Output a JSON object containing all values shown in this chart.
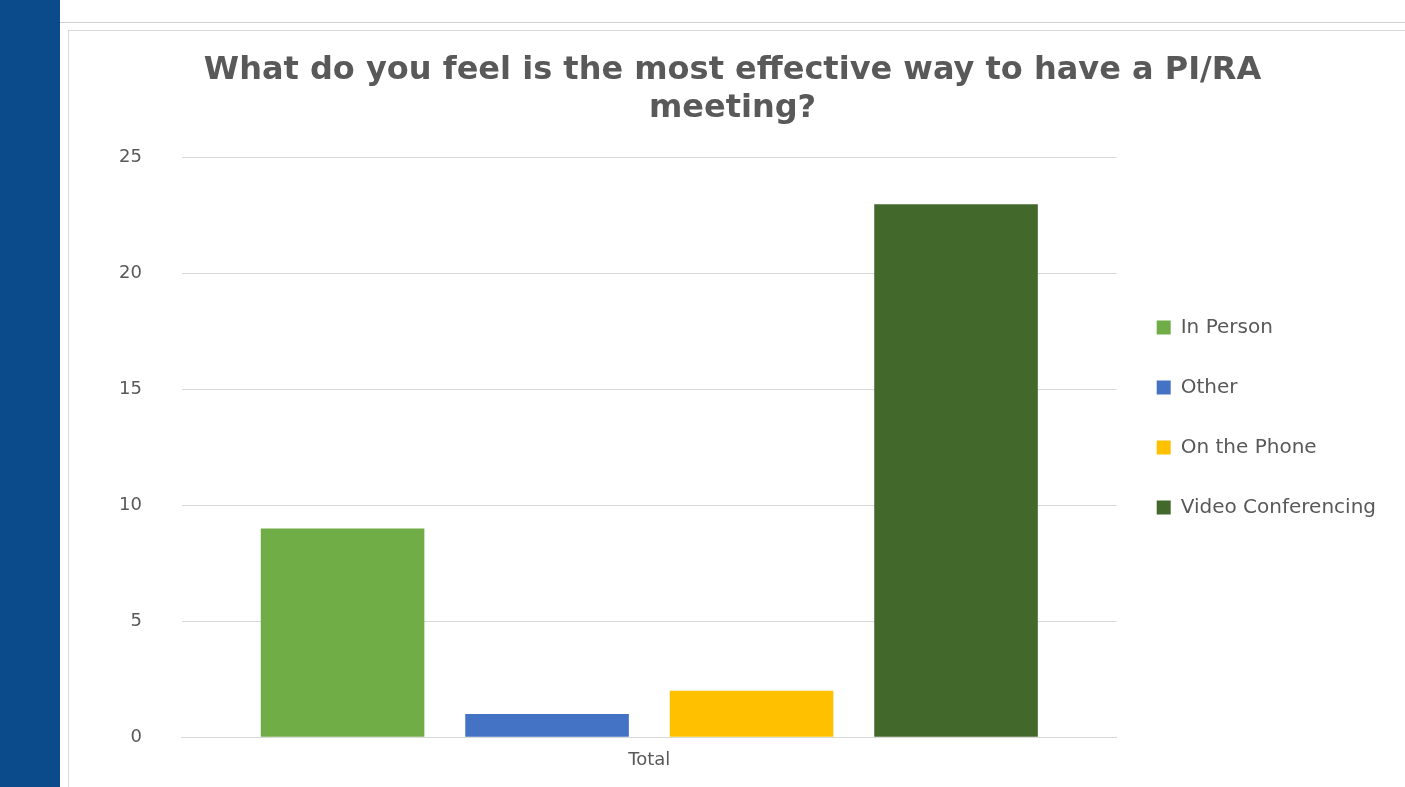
{
  "chart_data": {
    "type": "bar",
    "title": "What do you feel is the most effective way to have a PI/RA meeting?",
    "categories": [
      "Total"
    ],
    "series": [
      {
        "name": "In Person",
        "color": "#70ad47",
        "values": [
          9
        ]
      },
      {
        "name": "Other",
        "color": "#4472c4",
        "values": [
          1
        ]
      },
      {
        "name": "On the Phone",
        "color": "#ffc000",
        "values": [
          2
        ]
      },
      {
        "name": "Video Conferencing",
        "color": "#43682b",
        "values": [
          23
        ]
      }
    ],
    "ylim": [
      0,
      25
    ],
    "yticks": [
      0,
      5,
      10,
      15,
      20,
      25
    ],
    "grid": "y",
    "legend": "right"
  }
}
